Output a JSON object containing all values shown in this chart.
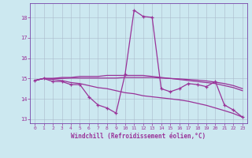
{
  "xlabel": "Windchill (Refroidissement éolien,°C)",
  "bg_color": "#cce8f0",
  "line_color": "#993399",
  "grid_color": "#aabbcc",
  "spine_color": "#7744aa",
  "xlim": [
    -0.5,
    23.5
  ],
  "ylim": [
    12.8,
    18.7
  ],
  "yticks": [
    13,
    14,
    15,
    16,
    17,
    18
  ],
  "xticks": [
    0,
    1,
    2,
    3,
    4,
    5,
    6,
    7,
    8,
    9,
    10,
    11,
    12,
    13,
    14,
    15,
    16,
    17,
    18,
    19,
    20,
    21,
    22,
    23
  ],
  "line1_x": [
    0,
    1,
    2,
    3,
    4,
    5,
    6,
    7,
    8,
    9,
    10,
    11,
    12,
    13,
    14,
    15,
    16,
    17,
    18,
    19,
    20,
    21,
    22,
    23
  ],
  "line1_y": [
    14.9,
    15.0,
    14.85,
    14.85,
    14.7,
    14.7,
    14.1,
    13.7,
    13.55,
    13.3,
    15.2,
    18.35,
    18.05,
    18.0,
    14.5,
    14.35,
    14.5,
    14.75,
    14.7,
    14.6,
    14.85,
    13.7,
    13.45,
    13.1
  ],
  "line2_x": [
    0,
    1,
    2,
    3,
    4,
    5,
    6,
    7,
    8,
    9,
    10,
    11,
    12,
    13,
    14,
    15,
    16,
    17,
    18,
    19,
    20,
    21,
    22,
    23
  ],
  "line2_y": [
    14.9,
    15.0,
    15.0,
    15.05,
    15.05,
    15.1,
    15.1,
    15.1,
    15.15,
    15.15,
    15.15,
    15.15,
    15.15,
    15.1,
    15.05,
    15.0,
    14.95,
    14.9,
    14.85,
    14.8,
    14.75,
    14.65,
    14.55,
    14.4
  ],
  "line3_x": [
    0,
    1,
    2,
    3,
    4,
    5,
    6,
    7,
    8,
    9,
    10,
    11,
    12,
    13,
    14,
    15,
    16,
    17,
    18,
    19,
    20,
    21,
    22,
    23
  ],
  "line3_y": [
    14.9,
    15.0,
    15.0,
    15.0,
    15.02,
    15.02,
    15.02,
    15.02,
    15.02,
    15.02,
    15.05,
    15.05,
    15.05,
    15.05,
    15.02,
    15.0,
    14.98,
    14.95,
    14.92,
    14.88,
    14.82,
    14.75,
    14.65,
    14.5
  ],
  "line4_x": [
    0,
    1,
    2,
    3,
    4,
    5,
    6,
    7,
    8,
    9,
    10,
    11,
    12,
    13,
    14,
    15,
    16,
    17,
    18,
    19,
    20,
    21,
    22,
    23
  ],
  "line4_y": [
    14.9,
    15.0,
    14.95,
    14.9,
    14.8,
    14.75,
    14.65,
    14.55,
    14.5,
    14.4,
    14.3,
    14.25,
    14.15,
    14.1,
    14.05,
    14.0,
    13.95,
    13.88,
    13.78,
    13.68,
    13.55,
    13.42,
    13.28,
    13.1
  ]
}
